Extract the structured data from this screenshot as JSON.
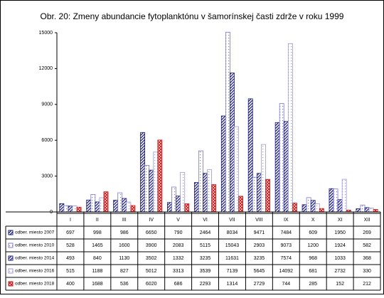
{
  "chart_data": {
    "type": "bar",
    "title": "Obr. 20:  Zmeny abundancie fytoplanktónu v šamorínskej časti zdrže v roku 1999",
    "categories": [
      "I",
      "II",
      "III",
      "IV",
      "V",
      "VI",
      "VII",
      "VIII",
      "IX",
      "X",
      "XI",
      "XII"
    ],
    "series": [
      {
        "name": "odber. miesto 2007",
        "color": "#1a1a7a",
        "pattern": "diagonal",
        "values": [
          697,
          998,
          986,
          6650,
          790,
          2464,
          8034,
          9471,
          7484,
          609,
          1950,
          269
        ]
      },
      {
        "name": "odber. miesto 2010",
        "color": "#7b7bd6",
        "pattern": "dots",
        "values": [
          528,
          1465,
          1600,
          3900,
          2083,
          5115,
          15043,
          2903,
          9073,
          1200,
          1924,
          582
        ]
      },
      {
        "name": "odber. miesto 2014",
        "color": "#22228a",
        "pattern": "diagonal",
        "values": [
          493,
          840,
          1130,
          3502,
          1332,
          3235,
          11631,
          3235,
          7574,
          968,
          1033,
          368
        ]
      },
      {
        "name": "odber. miesto 2016",
        "color": "#9a9ae0",
        "pattern": "dots",
        "values": [
          515,
          1188,
          827,
          5012,
          3313,
          3539,
          7139,
          5645,
          14092,
          681,
          2732,
          330
        ]
      },
      {
        "name": "odber. miesto 2018",
        "color": "#cc2222",
        "pattern": "cross",
        "values": [
          400,
          1688,
          536,
          6020,
          686,
          2293,
          1314,
          2729,
          744,
          285,
          152,
          212
        ]
      }
    ],
    "ylim": [
      0,
      15000
    ],
    "yticks": [
      0,
      3000,
      6000,
      9000,
      12000,
      15000
    ],
    "grid": false
  }
}
